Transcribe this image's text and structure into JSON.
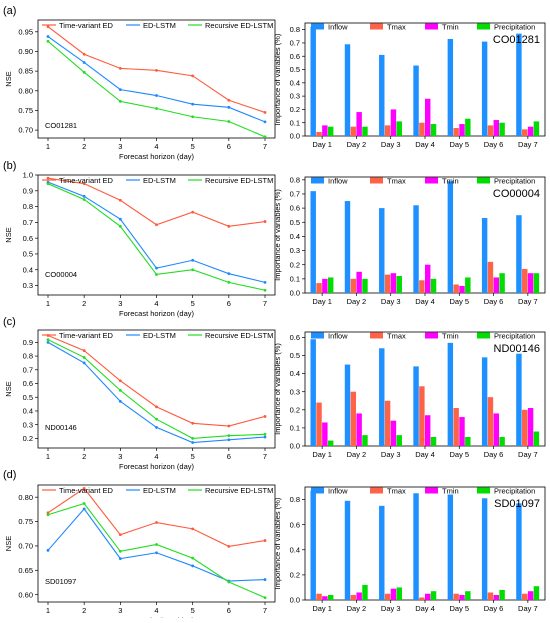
{
  "panel_labels": [
    "(a)",
    "(b)",
    "(c)",
    "(d)"
  ],
  "colors": {
    "time_variant_ed": "#ff5a3c",
    "ed_lstm": "#1e88ff",
    "recursive_ed_lstm": "#22dd22",
    "inflow": "#1e90ff",
    "tmax": "#ff6347",
    "tmin": "#ff00ff",
    "precipitation": "#00dd00"
  },
  "chart_data": [
    {
      "type": "line",
      "station": "CO01281",
      "xlabel": "Forecast horizon (day)",
      "ylabel": "NSE",
      "x": [
        1,
        2,
        3,
        4,
        5,
        6,
        7
      ],
      "ylim": [
        0.68,
        0.98
      ],
      "yticks": [
        "0.70",
        "0.75",
        "0.80",
        "0.85",
        "0.90",
        "0.95"
      ],
      "series": [
        {
          "name": "Time-variant ED",
          "values": [
            0.963,
            0.893,
            0.857,
            0.852,
            0.838,
            0.776,
            0.745
          ]
        },
        {
          "name": "ED-LSTM",
          "values": [
            0.938,
            0.872,
            0.803,
            0.788,
            0.766,
            0.758,
            0.721
          ]
        },
        {
          "name": "Recursive ED-LSTM",
          "values": [
            0.926,
            0.847,
            0.773,
            0.755,
            0.734,
            0.722,
            0.683
          ]
        }
      ]
    },
    {
      "type": "bar",
      "station": "CO01281",
      "ylabel": "Importance of variables (%)",
      "categories": [
        "Day 1",
        "Day 2",
        "Day 3",
        "Day 4",
        "Day 5",
        "Day 6",
        "Day 7"
      ],
      "ylim": [
        0,
        0.85
      ],
      "yticks": [
        "0.0",
        "0.1",
        "0.2",
        "0.3",
        "0.4",
        "0.5",
        "0.6",
        "0.7",
        "0.8"
      ],
      "series": [
        {
          "name": "Inflow",
          "values": [
            0.82,
            0.69,
            0.61,
            0.53,
            0.73,
            0.71,
            0.77
          ]
        },
        {
          "name": "Tmax",
          "values": [
            0.03,
            0.07,
            0.08,
            0.1,
            0.06,
            0.08,
            0.05
          ]
        },
        {
          "name": "Tmin",
          "values": [
            0.08,
            0.18,
            0.2,
            0.28,
            0.09,
            0.12,
            0.07
          ]
        },
        {
          "name": "Precipitation",
          "values": [
            0.07,
            0.07,
            0.11,
            0.09,
            0.13,
            0.1,
            0.11
          ]
        }
      ]
    },
    {
      "type": "line",
      "station": "CO00004",
      "xlabel": "Forecast horizon (day)",
      "ylabel": "NSE",
      "x": [
        1,
        2,
        3,
        4,
        5,
        6,
        7
      ],
      "ylim": [
        0.24,
        1.0
      ],
      "yticks": [
        "0.3",
        "0.4",
        "0.5",
        "0.6",
        "0.7",
        "0.8",
        "0.9",
        "1.0"
      ],
      "series": [
        {
          "name": "Time-variant ED",
          "values": [
            0.98,
            0.945,
            0.84,
            0.685,
            0.765,
            0.675,
            0.705
          ]
        },
        {
          "name": "ED-LSTM",
          "values": [
            0.955,
            0.865,
            0.72,
            0.41,
            0.46,
            0.375,
            0.32
          ]
        },
        {
          "name": "Recursive ED-LSTM",
          "values": [
            0.945,
            0.845,
            0.675,
            0.37,
            0.4,
            0.32,
            0.27
          ]
        }
      ]
    },
    {
      "type": "bar",
      "station": "CO00004",
      "ylabel": "Importance of variables (%)",
      "categories": [
        "Day 1",
        "Day 2",
        "Day 3",
        "Day 4",
        "Day 5",
        "Day 6",
        "Day 7"
      ],
      "ylim": [
        0,
        0.82
      ],
      "yticks": [
        "0.0",
        "0.1",
        "0.2",
        "0.3",
        "0.4",
        "0.5",
        "0.6",
        "0.7",
        "0.8"
      ],
      "series": [
        {
          "name": "Inflow",
          "values": [
            0.72,
            0.65,
            0.6,
            0.62,
            0.79,
            0.53,
            0.55
          ]
        },
        {
          "name": "Tmax",
          "values": [
            0.07,
            0.1,
            0.13,
            0.09,
            0.06,
            0.22,
            0.17
          ]
        },
        {
          "name": "Tmin",
          "values": [
            0.1,
            0.15,
            0.14,
            0.2,
            0.05,
            0.11,
            0.14
          ]
        },
        {
          "name": "Precipitation",
          "values": [
            0.11,
            0.1,
            0.12,
            0.1,
            0.11,
            0.14,
            0.14
          ]
        }
      ]
    },
    {
      "type": "line",
      "station": "ND00146",
      "xlabel": "Forecast horizon (day)",
      "ylabel": "NSE",
      "x": [
        1,
        2,
        3,
        4,
        5,
        6,
        7
      ],
      "ylim": [
        0.13,
        0.99
      ],
      "yticks": [
        "0.2",
        "0.3",
        "0.4",
        "0.5",
        "0.6",
        "0.7",
        "0.8",
        "0.9"
      ],
      "series": [
        {
          "name": "Time-variant ED",
          "values": [
            0.95,
            0.84,
            0.62,
            0.43,
            0.31,
            0.29,
            0.36
          ]
        },
        {
          "name": "ED-LSTM",
          "values": [
            0.9,
            0.75,
            0.47,
            0.28,
            0.17,
            0.19,
            0.21
          ]
        },
        {
          "name": "Recursive ED-LSTM",
          "values": [
            0.92,
            0.79,
            0.55,
            0.34,
            0.2,
            0.22,
            0.23
          ]
        }
      ]
    },
    {
      "type": "bar",
      "station": "ND00146",
      "ylabel": "Importance of variables (%)",
      "categories": [
        "Day 1",
        "Day 2",
        "Day 3",
        "Day 4",
        "Day 5",
        "Day 6",
        "Day 7"
      ],
      "ylim": [
        0,
        0.63
      ],
      "yticks": [
        "0.0",
        "0.1",
        "0.2",
        "0.3",
        "0.4",
        "0.5",
        "0.6"
      ],
      "series": [
        {
          "name": "Inflow",
          "values": [
            0.59,
            0.45,
            0.54,
            0.44,
            0.57,
            0.49,
            0.51
          ]
        },
        {
          "name": "Tmax",
          "values": [
            0.24,
            0.3,
            0.25,
            0.33,
            0.21,
            0.27,
            0.2
          ]
        },
        {
          "name": "Tmin",
          "values": [
            0.13,
            0.18,
            0.14,
            0.17,
            0.16,
            0.18,
            0.21
          ]
        },
        {
          "name": "Precipitation",
          "values": [
            0.03,
            0.06,
            0.06,
            0.05,
            0.05,
            0.05,
            0.08
          ]
        }
      ]
    },
    {
      "type": "line",
      "station": "SD01097",
      "xlabel": "Forecast horizon (day)",
      "ylabel": "NSE",
      "x": [
        1,
        2,
        3,
        4,
        5,
        6,
        7
      ],
      "ylim": [
        0.585,
        0.825
      ],
      "yticks": [
        "0.60",
        "0.65",
        "0.70",
        "0.75",
        "0.80"
      ],
      "series": [
        {
          "name": "Time-variant ED",
          "values": [
            0.768,
            0.818,
            0.723,
            0.748,
            0.735,
            0.699,
            0.711
          ]
        },
        {
          "name": "ED-LSTM",
          "values": [
            0.691,
            0.776,
            0.674,
            0.686,
            0.659,
            0.628,
            0.631
          ]
        },
        {
          "name": "Recursive ED-LSTM",
          "values": [
            0.764,
            0.787,
            0.689,
            0.703,
            0.675,
            0.626,
            0.594
          ]
        }
      ]
    },
    {
      "type": "bar",
      "station": "SD01097",
      "ylabel": "Importance of variables (%)",
      "categories": [
        "Day 1",
        "Day 2",
        "Day 3",
        "Day 4",
        "Day 5",
        "Day 6",
        "Day 7"
      ],
      "ylim": [
        0,
        0.9
      ],
      "yticks": [
        "0.0",
        "0.2",
        "0.4",
        "0.6",
        "0.8"
      ],
      "series": [
        {
          "name": "Inflow",
          "values": [
            0.87,
            0.79,
            0.75,
            0.85,
            0.84,
            0.81,
            0.77
          ]
        },
        {
          "name": "Tmax",
          "values": [
            0.05,
            0.04,
            0.05,
            0.02,
            0.05,
            0.06,
            0.05
          ]
        },
        {
          "name": "Tmin",
          "values": [
            0.03,
            0.06,
            0.09,
            0.05,
            0.04,
            0.04,
            0.07
          ]
        },
        {
          "name": "Precipitation",
          "values": [
            0.04,
            0.12,
            0.1,
            0.07,
            0.07,
            0.08,
            0.11
          ]
        }
      ]
    }
  ]
}
